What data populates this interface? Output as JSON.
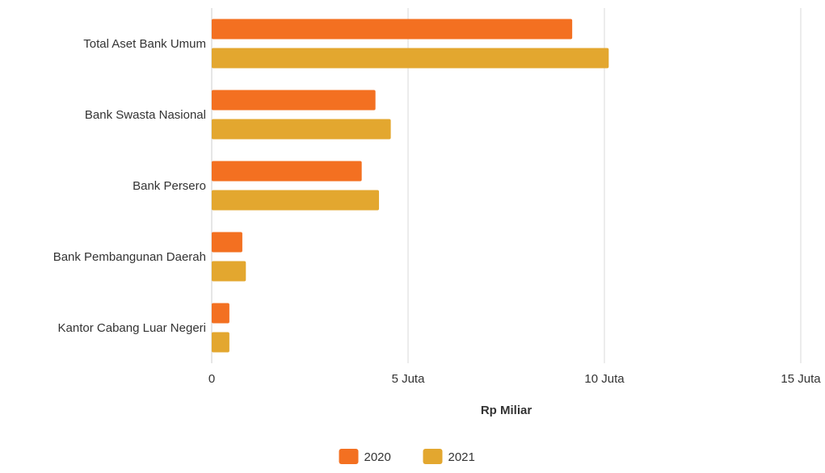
{
  "chart_data": {
    "type": "bar",
    "orientation": "horizontal",
    "categories": [
      "Total Aset Bank Umum",
      "Bank Swasta Nasional",
      "Bank Persero",
      "Bank Pembangunan Daerah",
      "Kantor Cabang Luar Negeri"
    ],
    "series": [
      {
        "name": "2020",
        "color": "#f37021",
        "values": [
          9.18,
          4.17,
          3.82,
          0.78,
          0.45
        ]
      },
      {
        "name": "2021",
        "color": "#e3a72f",
        "values": [
          10.11,
          4.56,
          4.26,
          0.87,
          0.45
        ]
      }
    ],
    "xlabel": "Rp Miliar",
    "xlim": [
      0,
      15
    ],
    "x_ticks": [
      0,
      5,
      10,
      15
    ],
    "x_tick_labels": [
      "0",
      "5 Juta",
      "10 Juta",
      "15 Juta"
    ],
    "grid": "vertical",
    "legend_position": "bottom-center"
  }
}
